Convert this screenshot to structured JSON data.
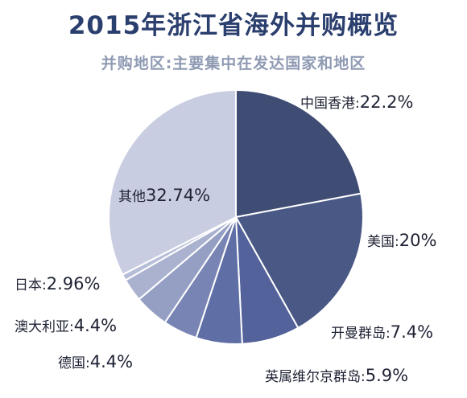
{
  "chart_data": {
    "type": "pie",
    "title": "2015年浙江省海外并购概览",
    "subtitle": "并购地区:主要集中在发达国家和地区",
    "slices": [
      {
        "label": "中国香港",
        "value": 22.2,
        "display": "22.2%",
        "color": "#3f4c73"
      },
      {
        "label": "美国",
        "value": 20,
        "display": "20%",
        "color": "#4a5886"
      },
      {
        "label": "开曼群岛",
        "value": 7.4,
        "display": "7.4%",
        "color": "#53629a"
      },
      {
        "label": "英属维尔京群岛",
        "value": 5.9,
        "display": "5.9%",
        "color": "#5f6fa6"
      },
      {
        "label": "德国",
        "value": 4.4,
        "display": "4.4%",
        "color": "#7884b3"
      },
      {
        "label": "澳大利亚",
        "value": 4.4,
        "display": "4.4%",
        "color": "#959fc4"
      },
      {
        "label": "日本",
        "value": 2.96,
        "display": "2.96%",
        "color": "#aab2d0"
      },
      {
        "label": "",
        "value": 0.8,
        "display": "",
        "color": "#b6bdd8"
      },
      {
        "label": "其他",
        "value": 32.74,
        "display": "32.74%",
        "color": "#c9cde1"
      }
    ]
  }
}
